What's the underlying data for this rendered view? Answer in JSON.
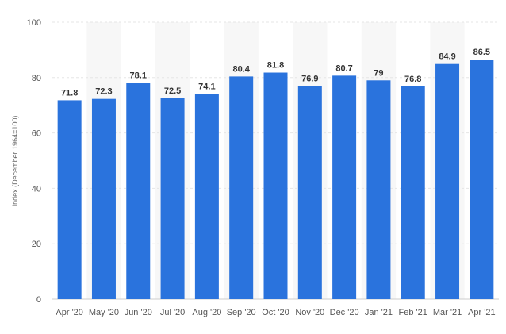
{
  "chart_data": {
    "type": "bar",
    "ylabel": "Index (December 1964=100)",
    "categories": [
      "Apr '20",
      "May '20",
      "Jun '20",
      "Jul '20",
      "Aug '20",
      "Sep '20",
      "Oct '20",
      "Nov '20",
      "Dec '20",
      "Jan '21",
      "Feb '21",
      "Mar '21",
      "Apr '21"
    ],
    "values": [
      71.8,
      72.3,
      78.1,
      72.5,
      74.1,
      80.4,
      81.8,
      76.9,
      80.7,
      79,
      76.8,
      84.9,
      86.5
    ],
    "value_labels": [
      "71.8",
      "72.3",
      "78.1",
      "72.5",
      "74.1",
      "80.4",
      "81.8",
      "76.9",
      "80.7",
      "79",
      "76.8",
      "84.9",
      "86.5"
    ],
    "yticks": [
      0,
      20,
      40,
      60,
      80,
      100
    ],
    "ylim": [
      0,
      100
    ],
    "grid": true,
    "bar_color": "#2a73dd",
    "band_color": "#f7f7f7"
  }
}
